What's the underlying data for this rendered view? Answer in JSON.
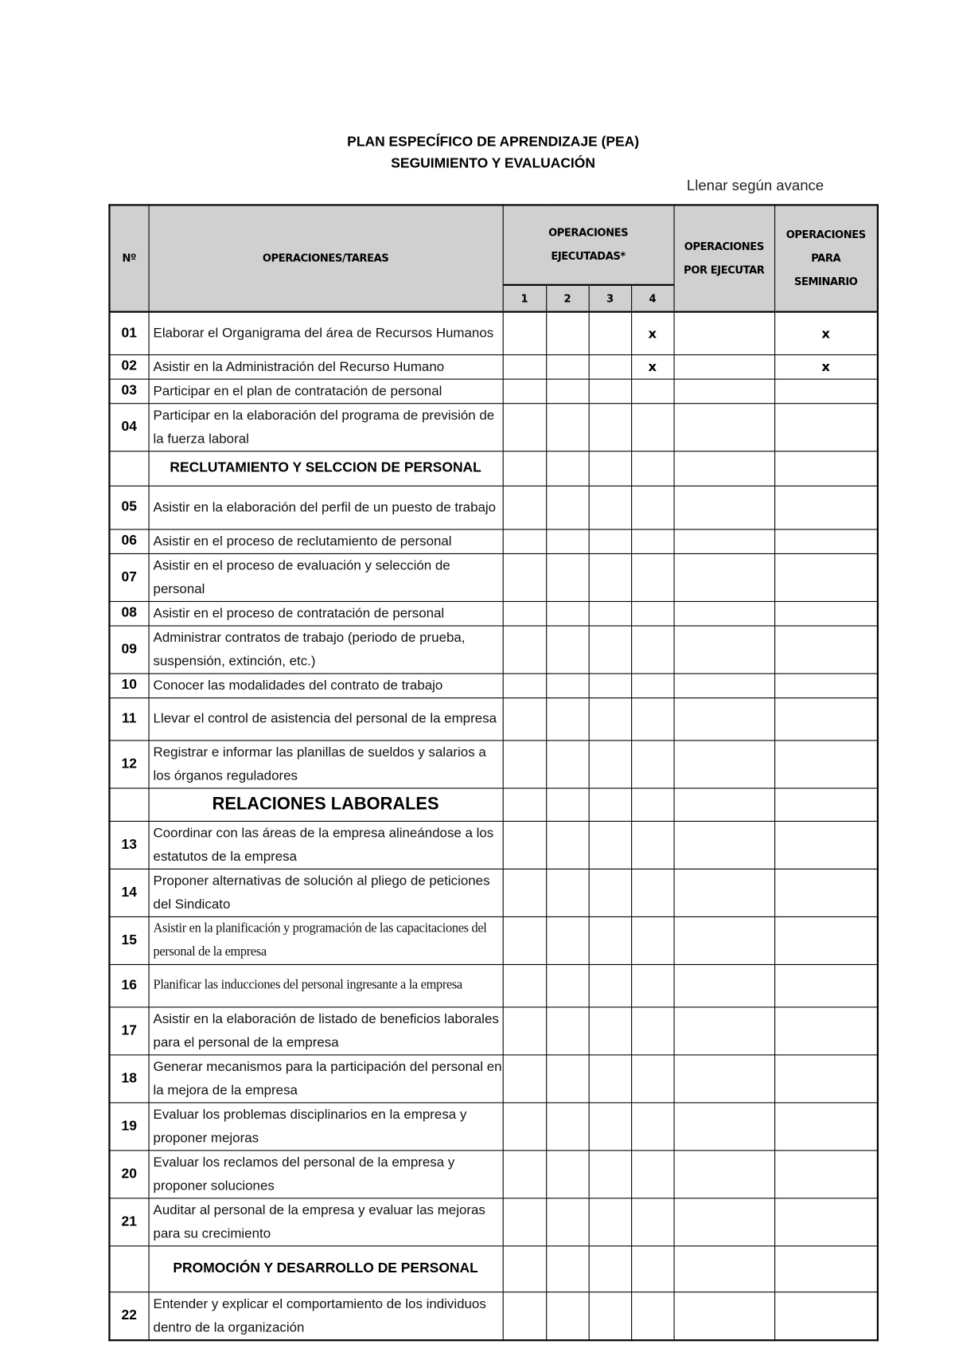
{
  "title": "PLAN ESPECÍFICO DE APRENDIZAJE (PEA)",
  "subtitle": "SEGUIMIENTO Y EVALUACIÓN",
  "note": "Llenar según avance",
  "headers": {
    "num": "Nº",
    "tasks": "OPERACIONES/TAREAS",
    "executed_line1": "OPERACIONES",
    "executed_line2": "EJECUTADAS*",
    "executed_sub": [
      "1",
      "2",
      "3",
      "4"
    ],
    "pending_line1": "OPERACIONES",
    "pending_line2": "POR EJECUTAR",
    "seminar_line1": "OPERACIONES",
    "seminar_line2": "PARA",
    "seminar_line3": "SEMINARIO"
  },
  "rows": [
    {
      "num": "01",
      "text": "Elaborar el Organigrama del área de Recursos Humanos",
      "c4": "x",
      "seminar": "x"
    },
    {
      "num": "02",
      "text": "Asistir en la Administración del Recurso Humano",
      "c4": "x",
      "seminar": "x"
    },
    {
      "num": "03",
      "text": "Participar en el plan de contratación de personal"
    },
    {
      "num": "04",
      "text": "Participar en la elaboración del programa de previsión de la fuerza laboral"
    },
    {
      "section": "RECLUTAMIENTO Y SELCCION DE PERSONAL"
    },
    {
      "num": "05",
      "text": "Asistir en la elaboración del perfil de un puesto de trabajo"
    },
    {
      "num": "06",
      "text": "Asistir en el proceso de reclutamiento de personal"
    },
    {
      "num": "07",
      "text": "Asistir en el proceso de evaluación y selección de personal"
    },
    {
      "num": "08",
      "text": "Asistir en el proceso de contratación de personal"
    },
    {
      "num": "09",
      "text": "Administrar contratos de trabajo (periodo de prueba, suspensión, extinción, etc.)"
    },
    {
      "num": "10",
      "text": "Conocer las modalidades del contrato de trabajo"
    },
    {
      "num": "11",
      "text": "Llevar el control de asistencia del personal de la empresa"
    },
    {
      "num": "12",
      "text": "Registrar e informar las planillas de sueldos y salarios a los órganos reguladores"
    },
    {
      "section": "RELACIONES LABORALES"
    },
    {
      "num": "13",
      "text": "Coordinar con las áreas de la empresa alineándose a los estatutos de la empresa"
    },
    {
      "num": "14",
      "text": "Proponer alternativas de solución al pliego de peticiones del Sindicato"
    },
    {
      "num": "15",
      "text": "Asistir en la planificación y programación de las capacitaciones del personal de la empresa"
    },
    {
      "num": "16",
      "text": "Planificar las inducciones del personal ingresante a la empresa"
    },
    {
      "num": "17",
      "text": "Asistir en la elaboración de listado de beneficios laborales para el personal de la empresa"
    },
    {
      "num": "18",
      "text": "Generar mecanismos para la participación del personal en la mejora de la empresa"
    },
    {
      "num": "19",
      "text": "Evaluar los problemas disciplinarios en la empresa y proponer mejoras"
    },
    {
      "num": "20",
      "text": "Evaluar los reclamos del personal de la empresa y proponer soluciones"
    },
    {
      "num": "21",
      "text": "Auditar al personal de la empresa y evaluar las mejoras para su crecimiento"
    },
    {
      "section": "PROMOCIÓN Y DESARROLLO DE PERSONAL"
    },
    {
      "num": "22",
      "text": "Entender y explicar el comportamiento de los individuos dentro de la organización"
    }
  ]
}
